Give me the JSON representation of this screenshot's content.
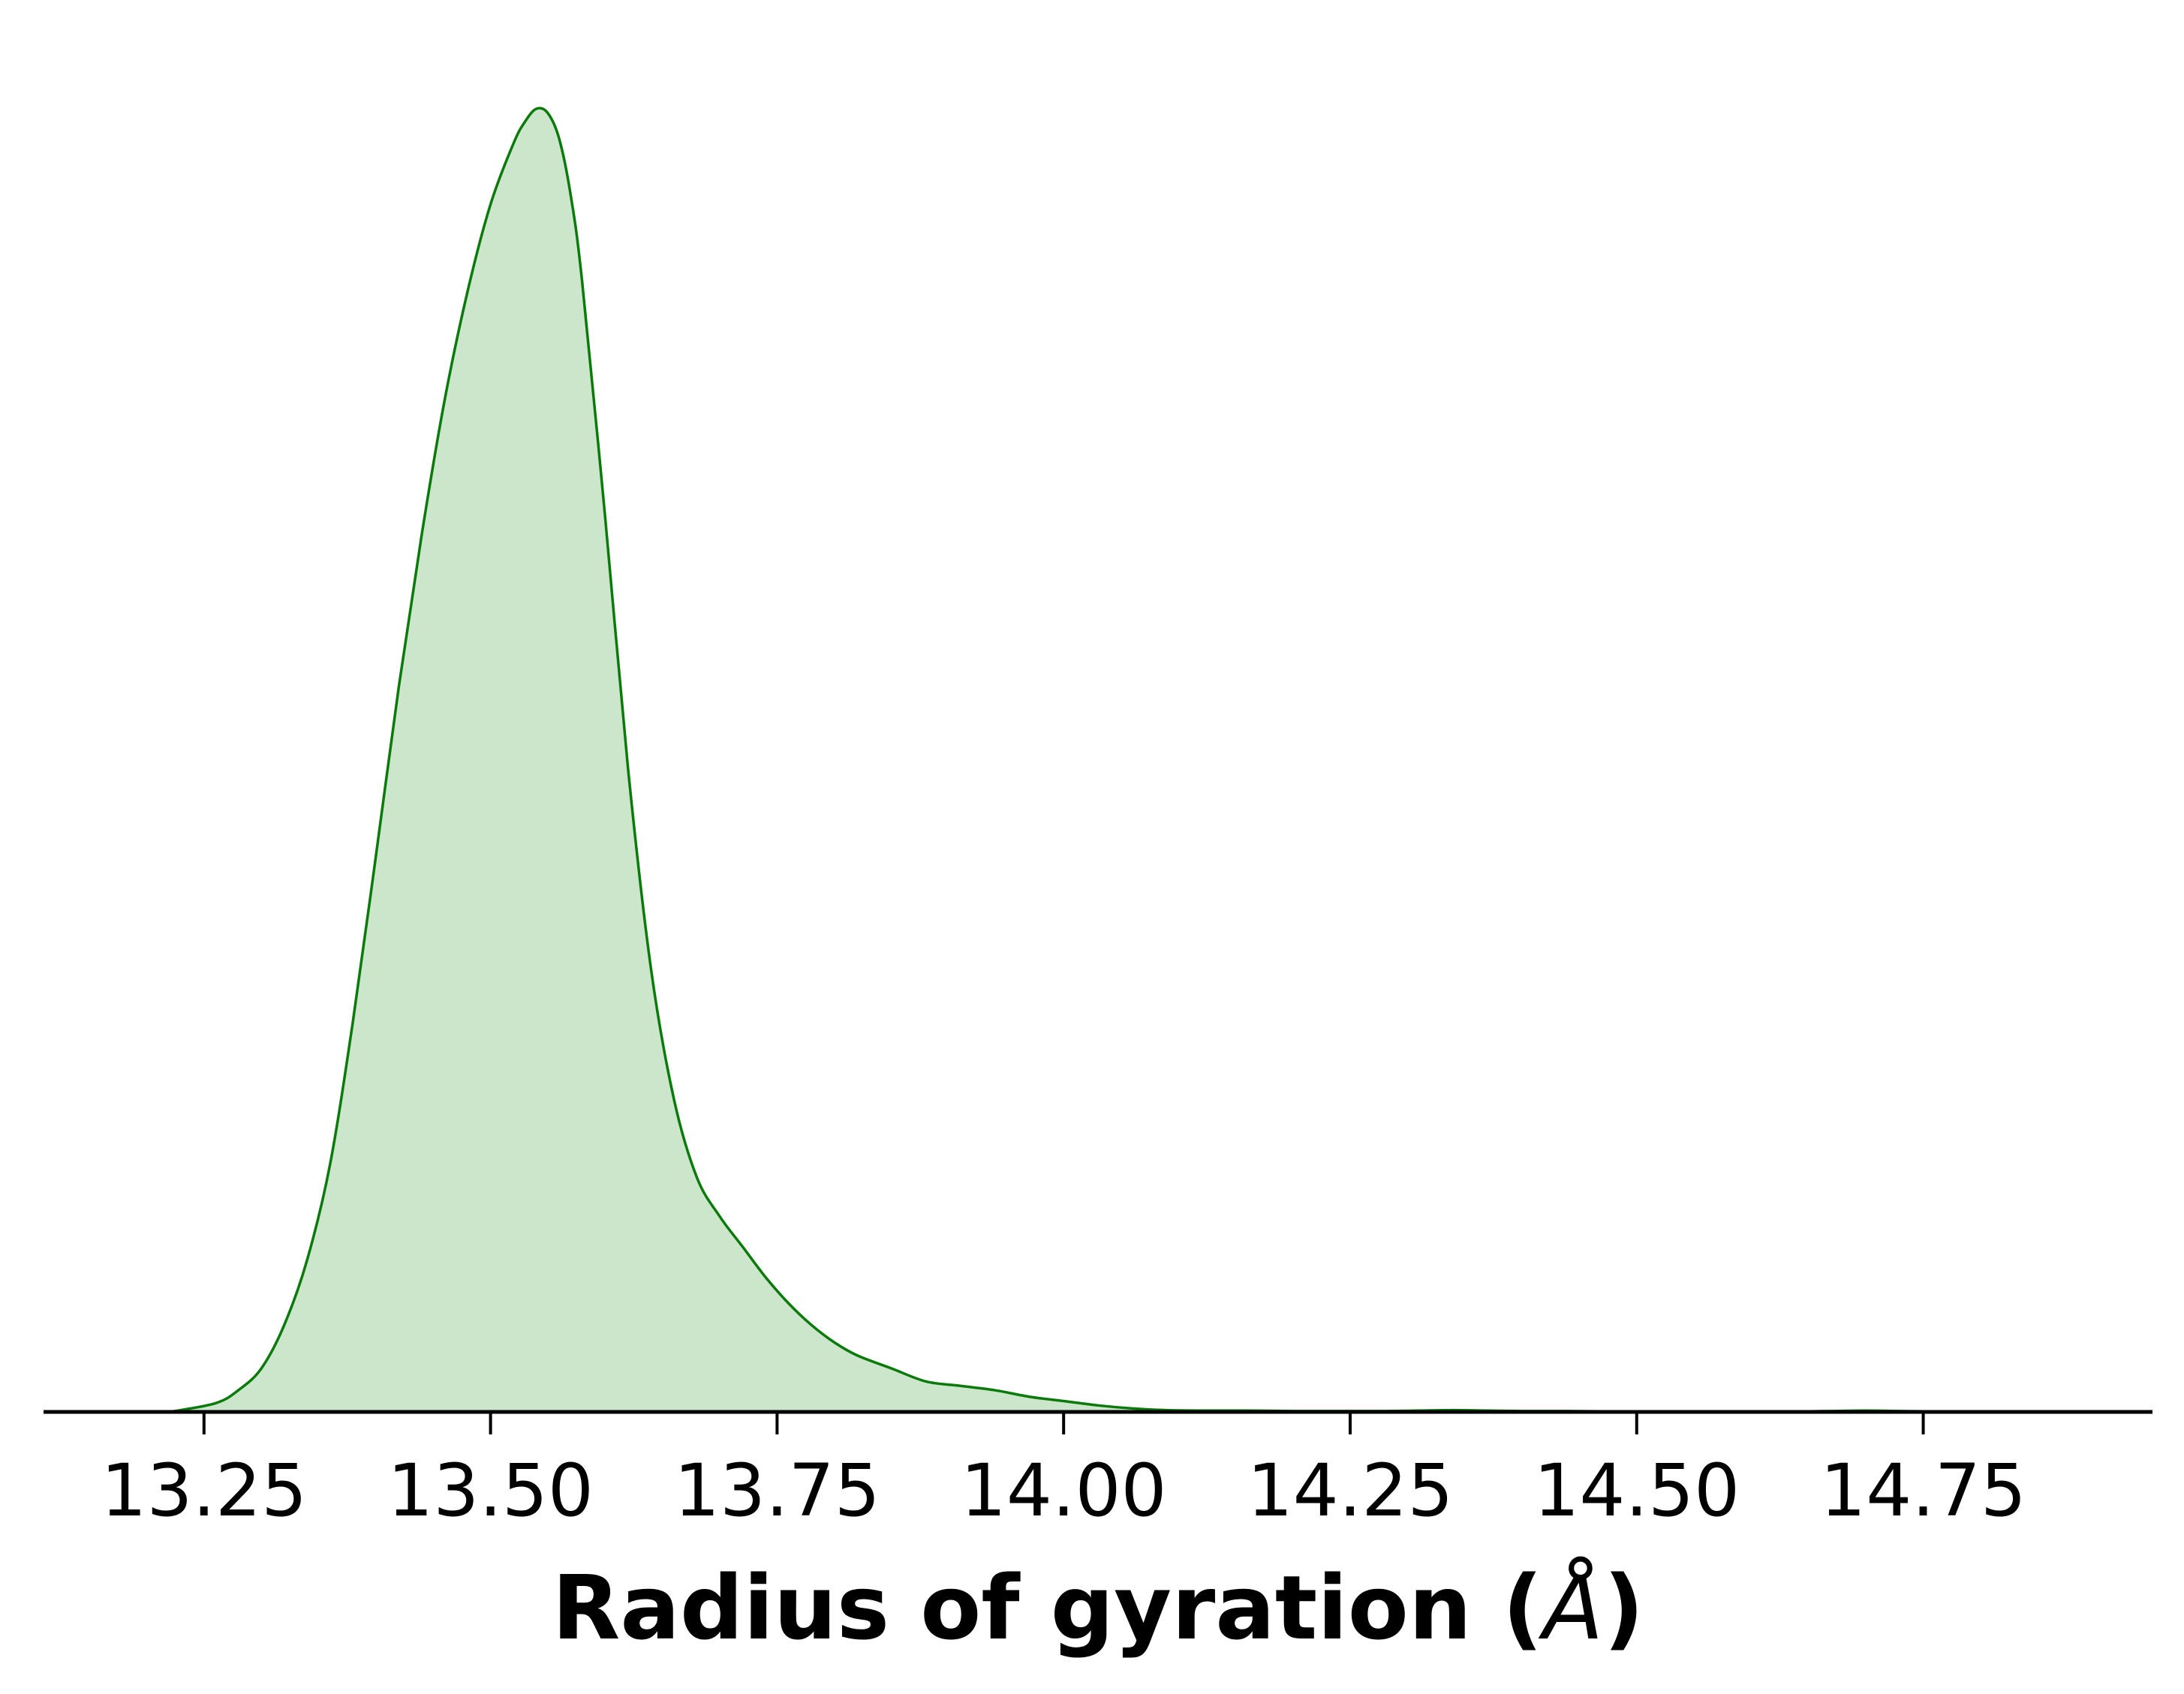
{
  "chart_data": {
    "type": "area",
    "title": "",
    "xlabel_prefix": "Radius of gyration (",
    "xlabel_unit": "Å",
    "xlabel_suffix": ")",
    "ylabel": "",
    "xlim": [
      13.11,
      14.95
    ],
    "ylim": [
      0,
      3.0
    ],
    "grid": false,
    "legend": "none",
    "x_ticks": [
      13.25,
      13.5,
      13.75,
      14.0,
      14.25,
      14.5,
      14.75
    ],
    "x_tick_labels": [
      "13.25",
      "13.50",
      "13.75",
      "14.00",
      "14.25",
      "14.50",
      "14.75"
    ],
    "series": [
      {
        "line_color": "#0a7a0a",
        "fill_color": "#cce6cc",
        "x": [
          13.22,
          13.26,
          13.28,
          13.3,
          13.32,
          13.34,
          13.36,
          13.38,
          13.4,
          13.42,
          13.44,
          13.46,
          13.48,
          13.5,
          13.52,
          13.53,
          13.54,
          13.55,
          13.56,
          13.57,
          13.58,
          13.6,
          13.62,
          13.64,
          13.66,
          13.68,
          13.7,
          13.72,
          13.74,
          13.76,
          13.78,
          13.8,
          13.82,
          13.85,
          13.88,
          13.91,
          13.94,
          13.97,
          14.0,
          14.03,
          14.06,
          14.09,
          14.12,
          14.16,
          14.2,
          14.24,
          14.28,
          14.31,
          14.34,
          14.37,
          14.4,
          14.44,
          14.48,
          14.52,
          14.56,
          14.6,
          14.64,
          14.67,
          14.7,
          14.73,
          14.76,
          14.79,
          14.82
        ],
        "y": [
          0.0,
          0.02,
          0.05,
          0.1,
          0.2,
          0.35,
          0.57,
          0.9,
          1.28,
          1.67,
          2.02,
          2.33,
          2.58,
          2.78,
          2.92,
          2.97,
          3.0,
          2.99,
          2.93,
          2.8,
          2.6,
          2.06,
          1.48,
          1.02,
          0.72,
          0.54,
          0.45,
          0.38,
          0.31,
          0.25,
          0.2,
          0.16,
          0.13,
          0.1,
          0.07,
          0.06,
          0.05,
          0.035,
          0.025,
          0.015,
          0.008,
          0.004,
          0.003,
          0.003,
          0.002,
          0.002,
          0.002,
          0.003,
          0.004,
          0.003,
          0.002,
          0.002,
          0.001,
          0.001,
          0.0005,
          0.0005,
          0.001,
          0.002,
          0.003,
          0.002,
          0.001,
          0.0005,
          0.0
        ]
      }
    ]
  }
}
